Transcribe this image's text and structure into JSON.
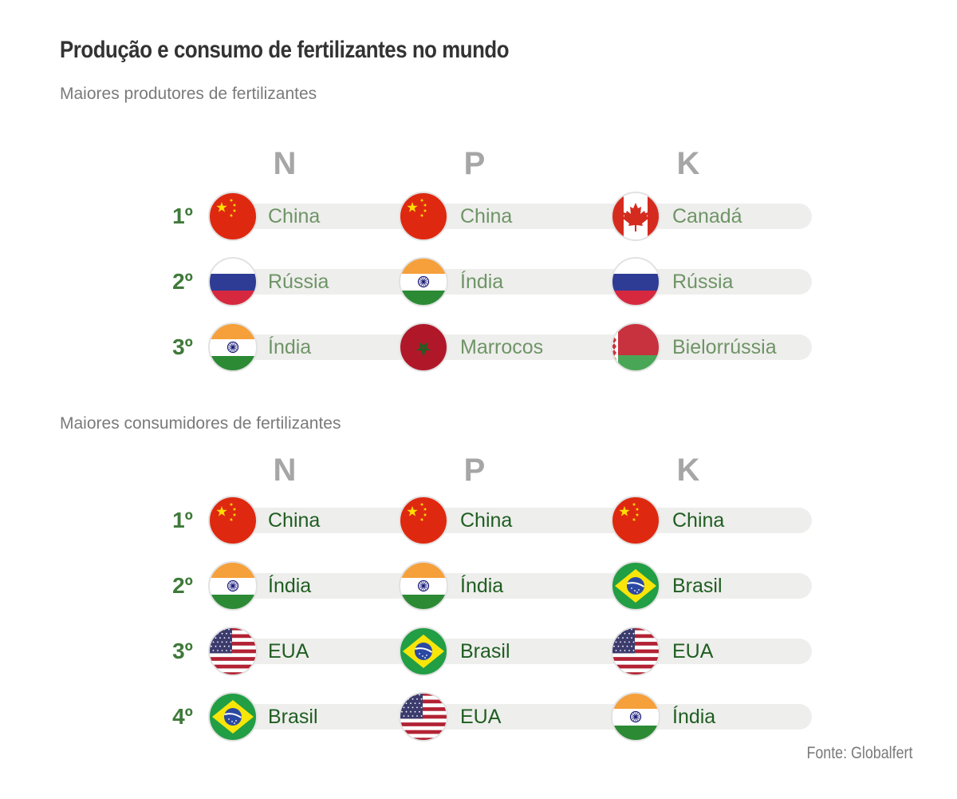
{
  "title": "Produção e consumo de fertilizantes no mundo",
  "source": "Fonte:  Globalfert",
  "columns": [
    "N",
    "P",
    "K"
  ],
  "producers": {
    "heading": "Maiores produtores de fertilizantes",
    "rows": [
      {
        "rank": "1º",
        "cells": [
          {
            "country": "China",
            "flag": "china-flag-icon"
          },
          {
            "country": "China",
            "flag": "china-flag-icon"
          },
          {
            "country": "Canadá",
            "flag": "canada-flag-icon"
          }
        ]
      },
      {
        "rank": "2º",
        "cells": [
          {
            "country": "Rússia",
            "flag": "russia-flag-icon"
          },
          {
            "country": "Índia",
            "flag": "india-flag-icon"
          },
          {
            "country": "Rússia",
            "flag": "russia-flag-icon"
          }
        ]
      },
      {
        "rank": "3º",
        "cells": [
          {
            "country": "Índia",
            "flag": "india-flag-icon"
          },
          {
            "country": "Marrocos",
            "flag": "morocco-flag-icon"
          },
          {
            "country": "Bielorrússia",
            "flag": "belarus-flag-icon"
          }
        ]
      }
    ]
  },
  "consumers": {
    "heading": "Maiores consumidores de fertilizantes",
    "rows": [
      {
        "rank": "1º",
        "cells": [
          {
            "country": "China",
            "flag": "china-flag-icon"
          },
          {
            "country": "China",
            "flag": "china-flag-icon"
          },
          {
            "country": "China",
            "flag": "china-flag-icon"
          }
        ]
      },
      {
        "rank": "2º",
        "cells": [
          {
            "country": "Índia",
            "flag": "india-flag-icon"
          },
          {
            "country": "Índia",
            "flag": "india-flag-icon"
          },
          {
            "country": "Brasil",
            "flag": "brazil-flag-icon"
          }
        ]
      },
      {
        "rank": "3º",
        "cells": [
          {
            "country": "EUA",
            "flag": "usa-flag-icon"
          },
          {
            "country": "Brasil",
            "flag": "brazil-flag-icon"
          },
          {
            "country": "EUA",
            "flag": "usa-flag-icon"
          }
        ]
      },
      {
        "rank": "4º",
        "cells": [
          {
            "country": "Brasil",
            "flag": "brazil-flag-icon"
          },
          {
            "country": "EUA",
            "flag": "usa-flag-icon"
          },
          {
            "country": "Índia",
            "flag": "india-flag-icon"
          }
        ]
      }
    ]
  },
  "colors": {
    "producer_text": "#6f9467",
    "consumer_text": "#1f5e22",
    "rank": "#3f7a3a",
    "pill": "#eeeeec",
    "column_header": "#a6a6a6"
  }
}
